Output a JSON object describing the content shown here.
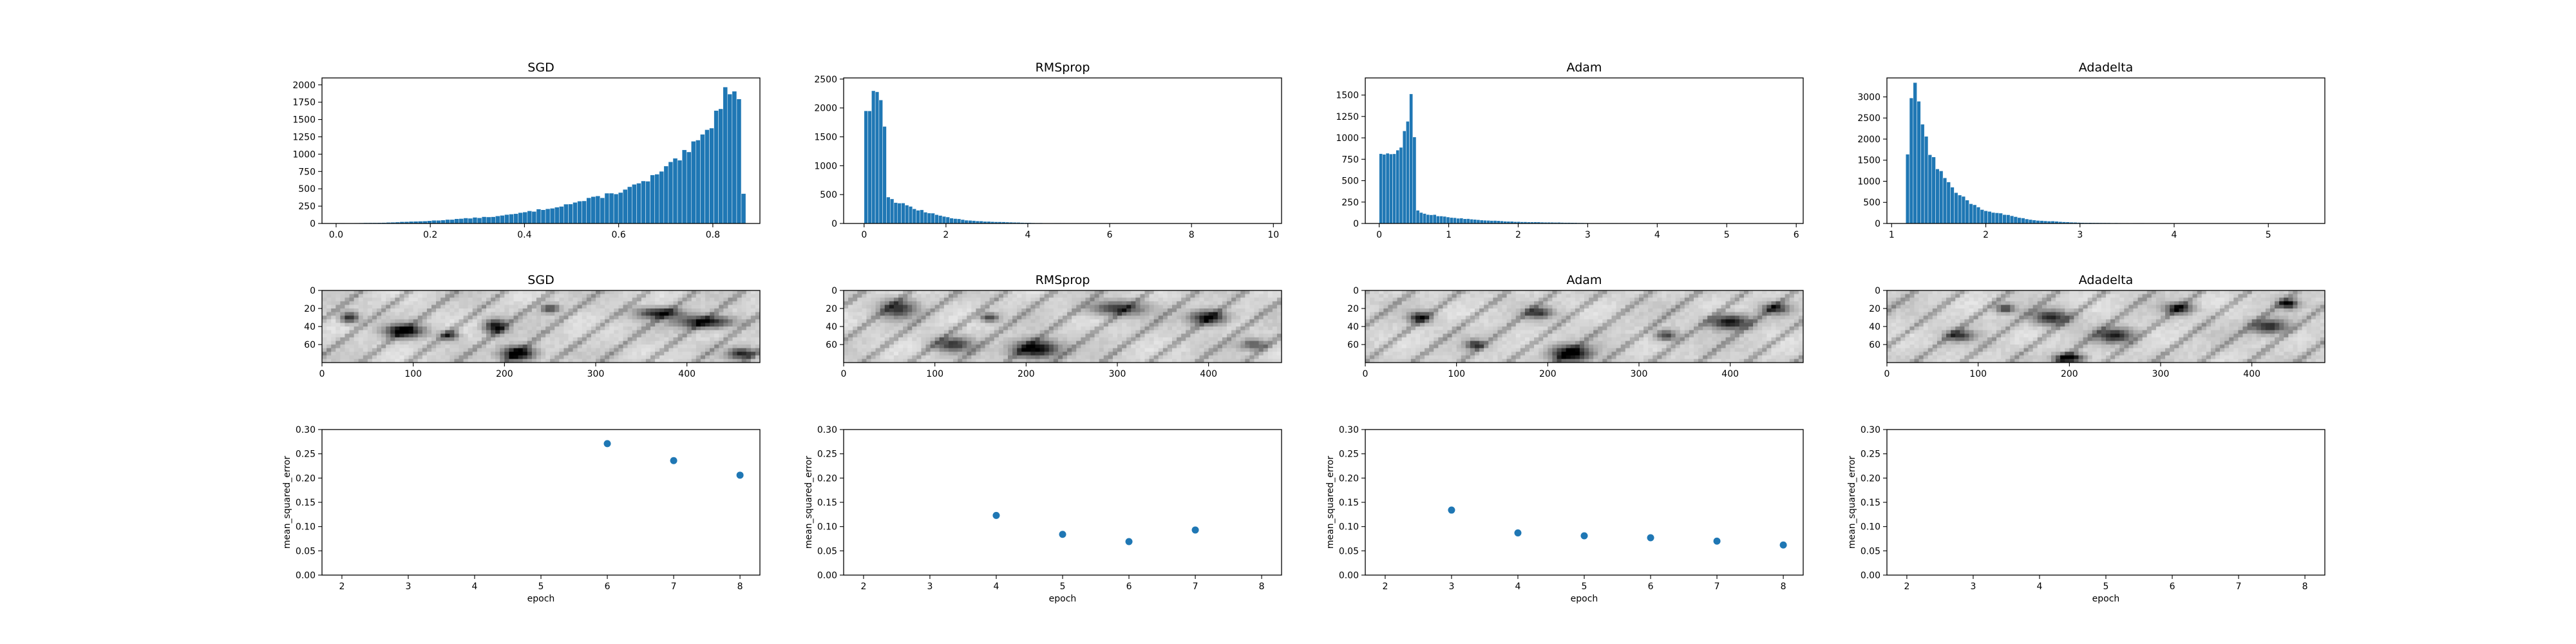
{
  "chart_data": [
    {
      "type": "bar",
      "title": "SGD",
      "x_range": [
        -0.03,
        0.9
      ],
      "ylim": [
        0,
        2100
      ],
      "xticks": [
        "0.0",
        "0.2",
        "0.4",
        "0.6",
        "0.8"
      ],
      "yticks": [
        "0",
        "250",
        "500",
        "750",
        "1000",
        "1250",
        "1500",
        "1750",
        "2000"
      ],
      "bins": {
        "start": 0.0,
        "end": 0.87,
        "count": 90
      },
      "anchors": [
        [
          0.0,
          5
        ],
        [
          0.1,
          12
        ],
        [
          0.2,
          40
        ],
        [
          0.3,
          85
        ],
        [
          0.35,
          110
        ],
        [
          0.4,
          160
        ],
        [
          0.45,
          220
        ],
        [
          0.5,
          290
        ],
        [
          0.55,
          370
        ],
        [
          0.6,
          460
        ],
        [
          0.65,
          580
        ],
        [
          0.7,
          780
        ],
        [
          0.75,
          1050
        ],
        [
          0.78,
          1250
        ],
        [
          0.8,
          1500
        ],
        [
          0.82,
          1800
        ],
        [
          0.84,
          2030
        ],
        [
          0.855,
          1950
        ],
        [
          0.86,
          1600
        ],
        [
          0.865,
          450
        ],
        [
          0.87,
          100
        ]
      ],
      "color": "#1f77b4"
    },
    {
      "type": "bar",
      "title": "RMSprop",
      "x_range": [
        -0.5,
        10.2
      ],
      "ylim": [
        0,
        2520
      ],
      "xticks": [
        "0",
        "2",
        "4",
        "6",
        "8",
        "10"
      ],
      "yticks": [
        "0",
        "500",
        "1000",
        "1500",
        "2000",
        "2500"
      ],
      "bins": {
        "start": 0.0,
        "end": 10.0,
        "count": 110
      },
      "anchors": [
        [
          0.0,
          1850
        ],
        [
          0.1,
          2000
        ],
        [
          0.2,
          2200
        ],
        [
          0.3,
          2350
        ],
        [
          0.4,
          2300
        ],
        [
          0.5,
          1600
        ],
        [
          0.55,
          650
        ],
        [
          0.6,
          450
        ],
        [
          0.8,
          370
        ],
        [
          1.0,
          320
        ],
        [
          1.5,
          200
        ],
        [
          2.0,
          110
        ],
        [
          2.5,
          60
        ],
        [
          3.0,
          35
        ],
        [
          4.0,
          12
        ],
        [
          5.0,
          5
        ],
        [
          7.0,
          2
        ],
        [
          10.0,
          0
        ]
      ],
      "color": "#1f77b4"
    },
    {
      "type": "bar",
      "title": "Adam",
      "x_range": [
        -0.2,
        6.1
      ],
      "ylim": [
        0,
        1700
      ],
      "xticks": [
        "0",
        "1",
        "2",
        "3",
        "4",
        "5",
        "6"
      ],
      "yticks": [
        "0",
        "250",
        "500",
        "750",
        "1000",
        "1250",
        "1500"
      ],
      "bins": {
        "start": 0.0,
        "end": 5.8,
        "count": 120
      },
      "anchors": [
        [
          0.0,
          750
        ],
        [
          0.1,
          800
        ],
        [
          0.2,
          820
        ],
        [
          0.3,
          900
        ],
        [
          0.35,
          1000
        ],
        [
          0.4,
          1200
        ],
        [
          0.45,
          1450
        ],
        [
          0.48,
          1600
        ],
        [
          0.5,
          1200
        ],
        [
          0.55,
          150
        ],
        [
          0.7,
          110
        ],
        [
          1.0,
          70
        ],
        [
          1.5,
          40
        ],
        [
          2.0,
          20
        ],
        [
          3.0,
          6
        ],
        [
          4.0,
          2
        ],
        [
          5.8,
          0
        ]
      ],
      "color": "#1f77b4"
    },
    {
      "type": "bar",
      "title": "Adadelta",
      "x_range": [
        0.95,
        5.6
      ],
      "ylim": [
        0,
        3450
      ],
      "xticks": [
        "1",
        "2",
        "3",
        "4",
        "5"
      ],
      "yticks": [
        "0",
        "500",
        "1000",
        "1500",
        "2000",
        "2500",
        "3000"
      ],
      "bins": {
        "start": 1.15,
        "end": 5.5,
        "count": 110
      },
      "anchors": [
        [
          1.15,
          800
        ],
        [
          1.2,
          3000
        ],
        [
          1.25,
          3300
        ],
        [
          1.3,
          2700
        ],
        [
          1.35,
          2100
        ],
        [
          1.4,
          1700
        ],
        [
          1.5,
          1300
        ],
        [
          1.6,
          950
        ],
        [
          1.8,
          550
        ],
        [
          2.0,
          300
        ],
        [
          2.5,
          80
        ],
        [
          3.0,
          20
        ],
        [
          4.0,
          3
        ],
        [
          5.5,
          0
        ]
      ],
      "color": "#1f77b4"
    },
    {
      "type": "heatmap",
      "title": "SGD",
      "xlim": [
        0,
        480
      ],
      "ylim": [
        80,
        0
      ],
      "xticks": [
        "0",
        "100",
        "200",
        "300",
        "400"
      ],
      "yticks": [
        "0",
        "20",
        "40",
        "60"
      ],
      "colormap": "gray_r",
      "dark_features": [
        [
          90,
          45,
          20,
          7,
          0.9
        ],
        [
          190,
          40,
          12,
          8,
          0.8
        ],
        [
          215,
          70,
          18,
          8,
          0.95
        ],
        [
          30,
          30,
          10,
          6,
          0.7
        ],
        [
          370,
          25,
          25,
          6,
          0.7
        ],
        [
          420,
          35,
          30,
          7,
          0.8
        ],
        [
          460,
          70,
          15,
          6,
          0.7
        ],
        [
          140,
          50,
          10,
          5,
          0.6
        ],
        [
          250,
          20,
          10,
          5,
          0.6
        ]
      ]
    },
    {
      "type": "heatmap",
      "title": "RMSprop",
      "xlim": [
        0,
        480
      ],
      "ylim": [
        80,
        0
      ],
      "xticks": [
        "0",
        "100",
        "200",
        "300",
        "400"
      ],
      "yticks": [
        "0",
        "20",
        "40",
        "60"
      ],
      "colormap": "gray_r",
      "dark_features": [
        [
          210,
          65,
          25,
          10,
          0.9
        ],
        [
          400,
          30,
          20,
          8,
          0.8
        ],
        [
          60,
          20,
          20,
          10,
          0.6
        ],
        [
          120,
          60,
          20,
          8,
          0.6
        ],
        [
          300,
          20,
          30,
          8,
          0.6
        ],
        [
          160,
          30,
          10,
          5,
          0.6
        ],
        [
          450,
          60,
          15,
          6,
          0.5
        ]
      ]
    },
    {
      "type": "heatmap",
      "title": "Adam",
      "xlim": [
        0,
        480
      ],
      "ylim": [
        80,
        0
      ],
      "xticks": [
        "0",
        "100",
        "200",
        "300",
        "400"
      ],
      "yticks": [
        "0",
        "20",
        "40",
        "60"
      ],
      "colormap": "gray_r",
      "dark_features": [
        [
          225,
          70,
          22,
          9,
          0.9
        ],
        [
          400,
          35,
          22,
          8,
          0.8
        ],
        [
          60,
          30,
          12,
          6,
          0.7
        ],
        [
          190,
          25,
          15,
          6,
          0.6
        ],
        [
          330,
          50,
          12,
          6,
          0.6
        ],
        [
          120,
          60,
          10,
          5,
          0.6
        ],
        [
          450,
          20,
          15,
          6,
          0.6
        ]
      ]
    },
    {
      "type": "heatmap",
      "title": "Adadelta",
      "xlim": [
        0,
        480
      ],
      "ylim": [
        80,
        0
      ],
      "xticks": [
        "0",
        "100",
        "200",
        "300",
        "400"
      ],
      "yticks": [
        "0",
        "20",
        "40",
        "60"
      ],
      "colormap": "gray_r",
      "dark_features": [
        [
          200,
          75,
          15,
          5,
          0.95
        ],
        [
          180,
          30,
          20,
          8,
          0.7
        ],
        [
          250,
          50,
          20,
          8,
          0.7
        ],
        [
          320,
          20,
          15,
          6,
          0.7
        ],
        [
          420,
          40,
          20,
          8,
          0.7
        ],
        [
          80,
          50,
          15,
          6,
          0.6
        ],
        [
          440,
          15,
          10,
          5,
          0.8
        ],
        [
          130,
          20,
          10,
          5,
          0.6
        ]
      ]
    },
    {
      "type": "scatter",
      "title": "",
      "xlabel": "epoch",
      "ylabel": "mean_squared_error",
      "xlim": [
        1.7,
        8.3
      ],
      "ylim": [
        0,
        0.3
      ],
      "xticks": [
        "2",
        "3",
        "4",
        "5",
        "6",
        "7",
        "8"
      ],
      "yticks": [
        "0.00",
        "0.05",
        "0.10",
        "0.15",
        "0.20",
        "0.25",
        "0.30"
      ],
      "x": [
        6,
        7,
        8
      ],
      "y": [
        0.271,
        0.236,
        0.206
      ],
      "color": "#1f77b4"
    },
    {
      "type": "scatter",
      "title": "",
      "xlabel": "epoch",
      "ylabel": "mean_squared_error",
      "xlim": [
        1.7,
        8.3
      ],
      "ylim": [
        0,
        0.3
      ],
      "xticks": [
        "2",
        "3",
        "4",
        "5",
        "6",
        "7",
        "8"
      ],
      "yticks": [
        "0.00",
        "0.05",
        "0.10",
        "0.15",
        "0.20",
        "0.25",
        "0.30"
      ],
      "x": [
        4,
        5,
        6,
        7
      ],
      "y": [
        0.123,
        0.084,
        0.069,
        0.093
      ],
      "color": "#1f77b4"
    },
    {
      "type": "scatter",
      "title": "",
      "xlabel": "epoch",
      "ylabel": "mean_squared_error",
      "xlim": [
        1.7,
        8.3
      ],
      "ylim": [
        0,
        0.3
      ],
      "xticks": [
        "2",
        "3",
        "4",
        "5",
        "6",
        "7",
        "8"
      ],
      "yticks": [
        "0.00",
        "0.05",
        "0.10",
        "0.15",
        "0.20",
        "0.25",
        "0.30"
      ],
      "x": [
        3,
        4,
        5,
        6,
        7,
        8
      ],
      "y": [
        0.134,
        0.087,
        0.081,
        0.077,
        0.07,
        0.062
      ],
      "color": "#1f77b4"
    },
    {
      "type": "scatter",
      "title": "",
      "xlabel": "epoch",
      "ylabel": "mean_squared_error",
      "xlim": [
        1.7,
        8.3
      ],
      "ylim": [
        0,
        0.3
      ],
      "xticks": [
        "2",
        "3",
        "4",
        "5",
        "6",
        "7",
        "8"
      ],
      "yticks": [
        "0.00",
        "0.05",
        "0.10",
        "0.15",
        "0.20",
        "0.25",
        "0.30"
      ],
      "x": [],
      "y": [],
      "color": "#1f77b4"
    }
  ]
}
